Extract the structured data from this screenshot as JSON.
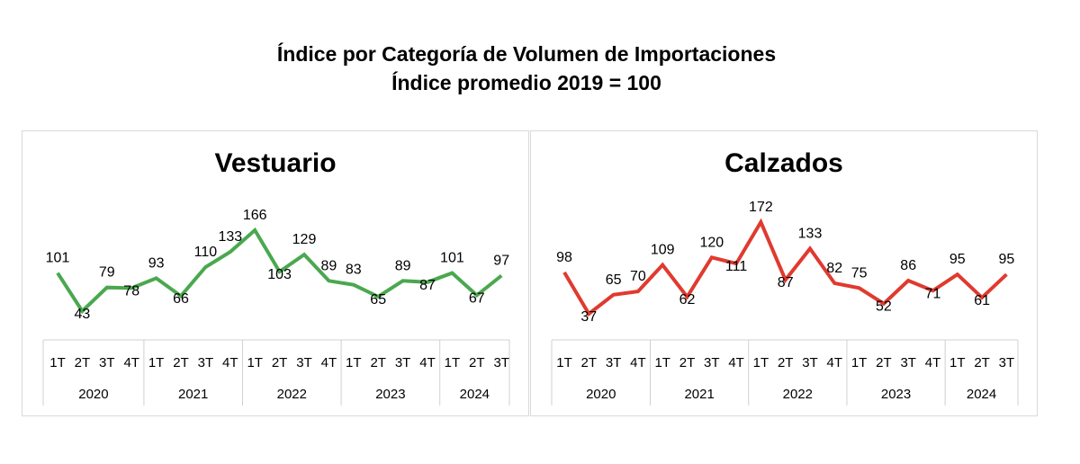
{
  "title": {
    "line1": "Índice por Categoría de Volumen de Importaciones",
    "line2": "Índice promedio 2019 = 100"
  },
  "chart_data": [
    {
      "type": "line",
      "title": "Vestuario",
      "color": "#4aa84f",
      "quarters": [
        "1T",
        "2T",
        "3T",
        "4T",
        "1T",
        "2T",
        "3T",
        "4T",
        "1T",
        "2T",
        "3T",
        "4T",
        "1T",
        "2T",
        "3T",
        "4T",
        "1T",
        "2T",
        "3T"
      ],
      "years": [
        {
          "label": "2020",
          "count": 4
        },
        {
          "label": "2021",
          "count": 4
        },
        {
          "label": "2022",
          "count": 4
        },
        {
          "label": "2023",
          "count": 4
        },
        {
          "label": "2024",
          "count": 3
        }
      ],
      "values": [
        101,
        43,
        79,
        78,
        93,
        66,
        110,
        133,
        166,
        103,
        129,
        89,
        83,
        65,
        89,
        87,
        101,
        67,
        97
      ],
      "grid": false,
      "legend": "none"
    },
    {
      "type": "line",
      "title": "Calzados",
      "color": "#e03a2f",
      "quarters": [
        "1T",
        "2T",
        "3T",
        "4T",
        "1T",
        "2T",
        "3T",
        "4T",
        "1T",
        "2T",
        "3T",
        "4T",
        "1T",
        "2T",
        "3T",
        "4T",
        "1T",
        "2T",
        "3T"
      ],
      "years": [
        {
          "label": "2020",
          "count": 4
        },
        {
          "label": "2021",
          "count": 4
        },
        {
          "label": "2022",
          "count": 4
        },
        {
          "label": "2023",
          "count": 4
        },
        {
          "label": "2024",
          "count": 3
        }
      ],
      "values": [
        98,
        37,
        65,
        70,
        109,
        62,
        120,
        111,
        172,
        87,
        133,
        82,
        75,
        52,
        86,
        71,
        95,
        61,
        95
      ],
      "grid": false,
      "legend": "none"
    }
  ]
}
